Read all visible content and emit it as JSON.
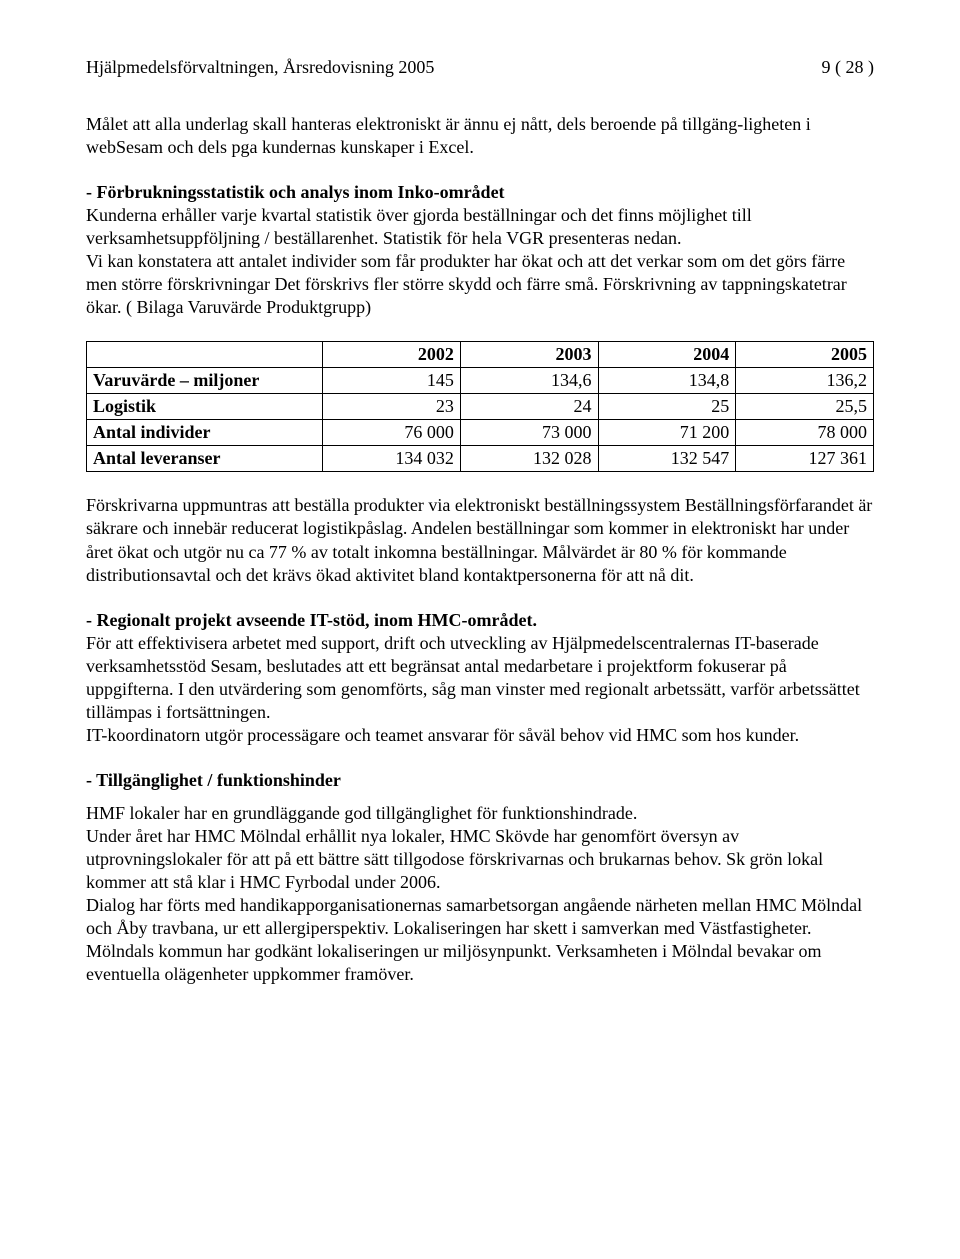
{
  "header": {
    "left": "Hjälpmedelsförvaltningen,   Årsredovisning 2005",
    "right": "9 ( 28 )"
  },
  "p1": "Målet att alla underlag skall hanteras elektroniskt är ännu ej nått, dels beroende på tillgäng-ligheten i webSesam och dels pga kundernas kunskaper i Excel.",
  "p2_bold": "- Förbrukningsstatistik och analys inom Inko-området",
  "p2_body": "Kunderna erhåller varje kvartal statistik över gjorda beställningar och det finns möjlighet till verksamhetsuppföljning / beställarenhet. Statistik för hela VGR  presenteras nedan.\nVi kan konstatera att antalet individer som får produkter har ökat och att det verkar som om det görs färre men större förskrivningar  Det förskrivs fler större skydd och färre små. Förskrivning av tappningskatetrar ökar.  ( Bilaga Varuvärde Produktgrupp)",
  "table": {
    "years": [
      "2002",
      "2003",
      "2004",
      "2005"
    ],
    "rows": [
      {
        "label": "Varuvärde – miljoner",
        "cells": [
          "145",
          "134,6",
          "134,8",
          "136,2"
        ]
      },
      {
        "label": "Logistik",
        "cells": [
          "23",
          "24",
          "25",
          "25,5"
        ]
      },
      {
        "label": "Antal individer",
        "cells": [
          "76 000",
          "73 000",
          "71 200",
          "78 000"
        ]
      },
      {
        "label": "Antal  leveranser",
        "cells": [
          "134 032",
          "132 028",
          "132  547",
          "127 361"
        ]
      }
    ]
  },
  "p3": "Förskrivarna uppmuntras att beställa produkter via elektroniskt beställningssystem Beställningsförfarandet är säkrare och innebär reducerat logistikpåslag. Andelen beställningar som kommer in elektroniskt har under året ökat och utgör  nu  ca 77 % av totalt inkomna beställningar. Målvärdet är 80 %  för kommande distributionsavtal och det krävs ökad aktivitet bland kontaktpersonerna för att nå dit.",
  "p4_bold": "- Regionalt projekt avseende IT-stöd, inom HMC-området.",
  "p4_body": "För att effektivisera arbetet med support, drift och utveckling av Hjälpmedelscentralernas  IT-baserade verksamhetsstöd Sesam, beslutades att ett begränsat antal medarbetare i projektform fokuserar på uppgifterna. I den utvärdering som genomförts, såg man vinster med regionalt arbetssätt, varför arbetssättet tillämpas i fortsättningen.\nIT-koordinatorn utgör processägare och teamet ansvarar för såväl behov vid HMC som hos kunder.",
  "p5_bold": " - Tillgänglighet / funktionshinder",
  "p5_body": "HMF lokaler har en grundläggande god tillgänglighet för funktionshindrade.\nUnder året har HMC Mölndal erhållit nya lokaler, HMC Skövde har genomfört översyn av utprovningslokaler för att på ett bättre sätt tillgodose förskrivarnas och brukarnas behov.  Sk  grön lokal  kommer att stå klar i HMC Fyrbodal under 2006.\nDialog har förts med handikapporganisationernas samarbetsorgan angående närheten mellan HMC Mölndal och Åby travbana, ur ett allergiperspektiv. Lokaliseringen har skett i samverkan med Västfastigheter.  Mölndals kommun har godkänt lokaliseringen ur miljösynpunkt. Verksamheten i Mölndal bevakar om eventuella olägenheter uppkommer framöver."
}
